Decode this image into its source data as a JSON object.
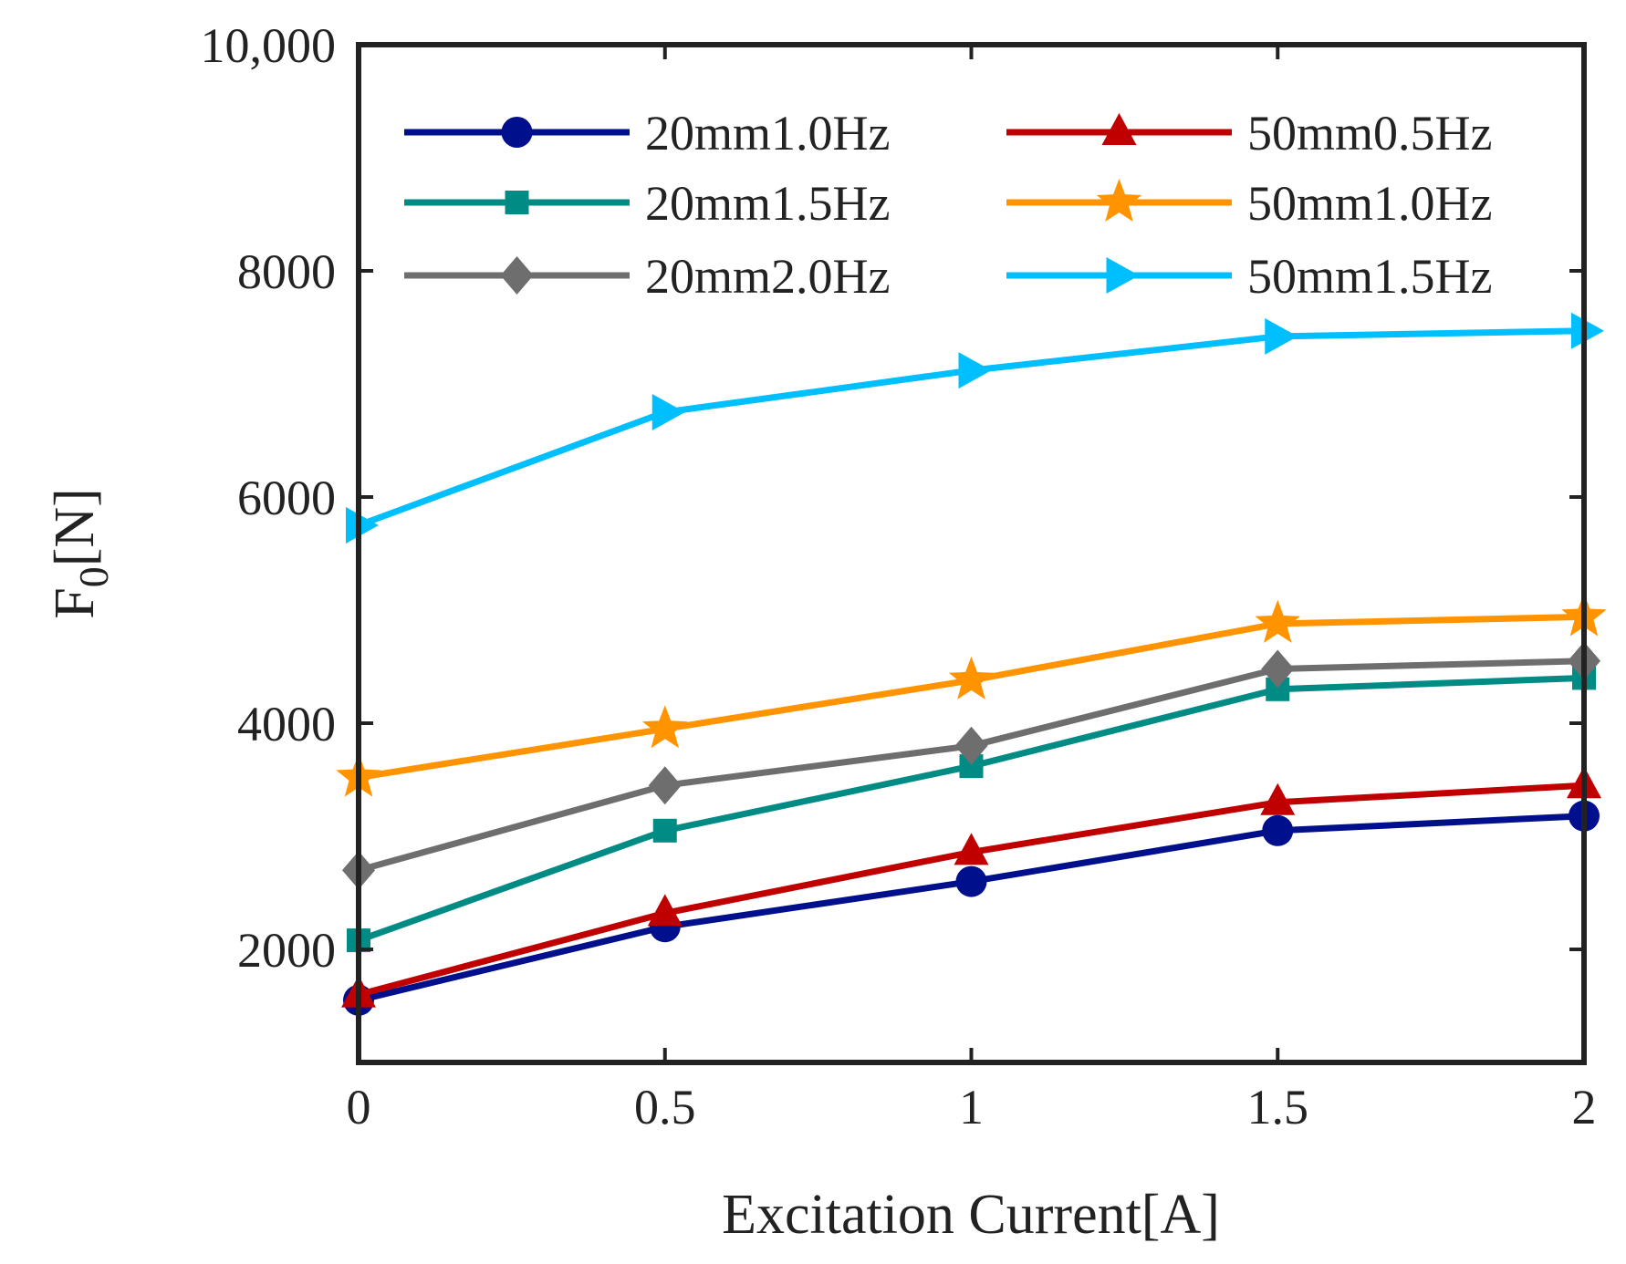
{
  "chart_data": {
    "type": "line",
    "xlabel": "Excitation Current[A]",
    "ylabel": "F",
    "ylabel_subscript": "0",
    "ylabel_unit": "[N]",
    "xlim": [
      0,
      2
    ],
    "ylim": [
      1000,
      10000
    ],
    "x_ticks": [
      {
        "value": 0,
        "label": "0"
      },
      {
        "value": 0.5,
        "label": "0.5"
      },
      {
        "value": 1,
        "label": "1"
      },
      {
        "value": 1.5,
        "label": "1.5"
      },
      {
        "value": 2,
        "label": "2"
      }
    ],
    "y_ticks": [
      {
        "value": 2000,
        "label": "2000"
      },
      {
        "value": 4000,
        "label": "4000"
      },
      {
        "value": 6000,
        "label": "6000"
      },
      {
        "value": 8000,
        "label": "8000"
      },
      {
        "value": 10000,
        "label": "10,000"
      }
    ],
    "grid": false,
    "legend_position": "top",
    "x": [
      0,
      0.5,
      1,
      1.5,
      2
    ],
    "series": [
      {
        "name": "20mm1.0Hz",
        "color": "#000f8c",
        "marker": "circle",
        "values": [
          1550,
          2200,
          2600,
          3050,
          3180
        ]
      },
      {
        "name": "20mm1.5Hz",
        "color": "#008b85",
        "marker": "square",
        "values": [
          2080,
          3050,
          3620,
          4300,
          4400
        ]
      },
      {
        "name": "20mm2.0Hz",
        "color": "#6e6e6e",
        "marker": "diamond",
        "values": [
          2700,
          3450,
          3800,
          4480,
          4550
        ]
      },
      {
        "name": "50mm0.5Hz",
        "color": "#c00000",
        "marker": "triangle-up",
        "values": [
          1600,
          2320,
          2860,
          3300,
          3450
        ]
      },
      {
        "name": "50mm1.0Hz",
        "color": "#ff9400",
        "marker": "star",
        "values": [
          3520,
          3950,
          4380,
          4880,
          4940
        ]
      },
      {
        "name": "50mm1.5Hz",
        "color": "#00bfff",
        "marker": "triangle-right",
        "values": [
          5750,
          6750,
          7120,
          7420,
          7470
        ]
      }
    ]
  }
}
